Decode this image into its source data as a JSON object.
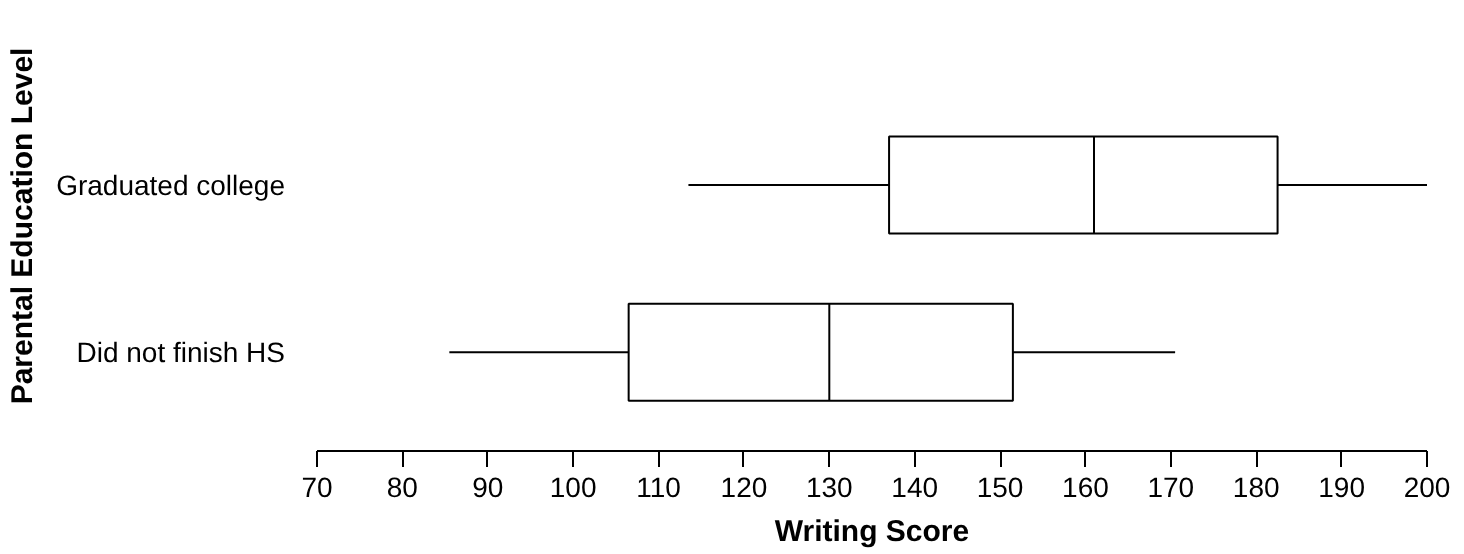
{
  "chart_data": {
    "type": "box",
    "xlabel": "Writing Score",
    "ylabel": "Parental Education Level",
    "orientation": "horizontal",
    "categories": [
      "Graduated college",
      "Did not finish HS"
    ],
    "boxes": [
      {
        "low": 113.5,
        "q1": 137,
        "median": 161,
        "q3": 182.5,
        "high": 200
      },
      {
        "low": 85.5,
        "q1": 106.5,
        "median": 130,
        "q3": 151.5,
        "high": 170.5
      }
    ],
    "color": "#ffffff",
    "xlim": [
      70,
      200
    ],
    "xticks": [
      70,
      80,
      90,
      100,
      110,
      120,
      130,
      140,
      150,
      160,
      170,
      180,
      190,
      200
    ],
    "grid": false
  }
}
